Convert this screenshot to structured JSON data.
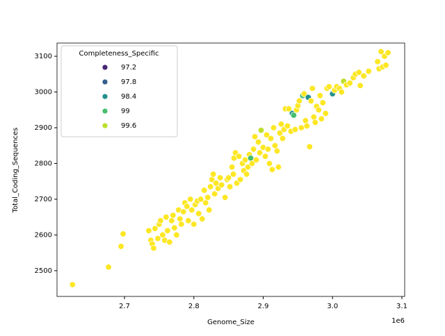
{
  "chart_data": {
    "type": "scatter",
    "xlabel": "Genome_Size",
    "ylabel": "Total_Coding_Sequences",
    "x_offset_label": "1e6",
    "legend_title": "Completeness_Specific",
    "legend_values": [
      97.2,
      97.8,
      98.4,
      99.0,
      99.6
    ],
    "palette": "viridis",
    "hue_lim": [
      96.9,
      99.9
    ],
    "legend_corner": "upper left",
    "xlim": [
      2602700,
      3104000
    ],
    "xticks": [
      {
        "value": 2700000,
        "label": "2.7"
      },
      {
        "value": 2800000,
        "label": "2.8"
      },
      {
        "value": 2900000,
        "label": "2.9"
      },
      {
        "value": 3000000,
        "label": "3.0"
      },
      {
        "value": 3100000,
        "label": "3.1"
      }
    ],
    "ylim": [
      2428,
      3137
    ],
    "yticks": [
      2500,
      2600,
      2700,
      2800,
      2900,
      3000,
      3100
    ],
    "x": [
      2625000,
      2677000,
      2695000,
      2698000,
      2735000,
      2738000,
      2740000,
      2742000,
      2744000,
      2748000,
      2750000,
      2752000,
      2755000,
      2758000,
      2760000,
      2762000,
      2765000,
      2768000,
      2770000,
      2772000,
      2775000,
      2778000,
      2780000,
      2782000,
      2785000,
      2787000,
      2790000,
      2792000,
      2795000,
      2797000,
      2800000,
      2802000,
      2805000,
      2807000,
      2810000,
      2812000,
      2815000,
      2817000,
      2820000,
      2822000,
      2824000,
      2826000,
      2828000,
      2830000,
      2832000,
      2835000,
      2838000,
      2840000,
      2845000,
      2848000,
      2850000,
      2852000,
      2855000,
      2857000,
      2858000,
      2860000,
      2862000,
      2865000,
      2867000,
      2870000,
      2872000,
      2874000,
      2876000,
      2878000,
      2880000,
      2882000,
      2884000,
      2886000,
      2888000,
      2890000,
      2893000,
      2895000,
      2897000,
      2900000,
      2903000,
      2905000,
      2907000,
      2909000,
      2911000,
      2913000,
      2915000,
      2917000,
      2920000,
      2922000,
      2924000,
      2926000,
      2928000,
      2930000,
      2932000,
      2935000,
      2937000,
      2940000,
      2942000,
      2944000,
      2946000,
      2948000,
      2950000,
      2952000,
      2955000,
      2957000,
      2959000,
      2961000,
      2963000,
      2965000,
      2967000,
      2969000,
      2971000,
      2973000,
      2975000,
      2977000,
      2980000,
      2982000,
      2984000,
      2986000,
      2990000,
      2992000,
      2995000,
      3000000,
      3003000,
      3006000,
      3010000,
      3013000,
      3016000,
      3020000,
      3025000,
      3030000,
      3033000,
      3038000,
      3040000,
      3045000,
      3052000,
      3065000,
      3067000,
      3070000,
      3072000,
      3075000,
      3077000,
      3080000
    ],
    "y": [
      2461,
      2510,
      2568,
      2603,
      2612,
      2585,
      2575,
      2563,
      2618,
      2590,
      2630,
      2640,
      2600,
      2585,
      2650,
      2612,
      2580,
      2640,
      2655,
      2620,
      2600,
      2670,
      2645,
      2630,
      2665,
      2690,
      2680,
      2640,
      2700,
      2670,
      2630,
      2685,
      2695,
      2660,
      2700,
      2645,
      2725,
      2690,
      2705,
      2670,
      2735,
      2755,
      2770,
      2715,
      2745,
      2730,
      2760,
      2740,
      2705,
      2755,
      2760,
      2735,
      2790,
      2770,
      2815,
      2830,
      2745,
      2820,
      2755,
      2800,
      2780,
      2810,
      2770,
      2790,
      2825,
      2815,
      2800,
      2840,
      2875,
      2810,
      2860,
      2830,
      2893,
      2845,
      2820,
      2880,
      2840,
      2800,
      2870,
      2783,
      2900,
      2850,
      2835,
      2790,
      2885,
      2910,
      2870,
      2895,
      2953,
      2905,
      2953,
      2890,
      2940,
      2935,
      2895,
      2950,
      2962,
      2975,
      2900,
      2990,
      2995,
      2920,
      2905,
      2985,
      2847,
      2975,
      3010,
      2930,
      2915,
      2960,
      2950,
      2990,
      2925,
      2970,
      2940,
      3010,
      3015,
      2995,
      3005,
      3015,
      3010,
      3000,
      3030,
      3020,
      3025,
      3040,
      3050,
      3055,
      3018,
      3045,
      3058,
      3085,
      3065,
      3113,
      3070,
      3100,
      3075,
      3110
    ],
    "hue": [
      100,
      100,
      100,
      100,
      100,
      100,
      100,
      100,
      100,
      100,
      100,
      100,
      100,
      100,
      100,
      100,
      100,
      100,
      100,
      100,
      100,
      100,
      100,
      100,
      100,
      100,
      100,
      100,
      100,
      100,
      100,
      100,
      100,
      100,
      100,
      100,
      100,
      100,
      100,
      100,
      100,
      100,
      100,
      100,
      100,
      100,
      100,
      100,
      100,
      100,
      100,
      100,
      100,
      100,
      100,
      100,
      100,
      100,
      100,
      100,
      100,
      100,
      100,
      100,
      100,
      99.0,
      100,
      100,
      100,
      100,
      100,
      100,
      99.6,
      100,
      100,
      100,
      100,
      100,
      100,
      100,
      100,
      100,
      100,
      100,
      100,
      100,
      100,
      100,
      100,
      100,
      100,
      100,
      98.4,
      99.0,
      100,
      100,
      100,
      100,
      100,
      99.0,
      100,
      100,
      100,
      98.4,
      100,
      100,
      100,
      100,
      100,
      100,
      100,
      100,
      100,
      100,
      100,
      100,
      100,
      98.4,
      100,
      100,
      100,
      100,
      99.6,
      100,
      100,
      100,
      100,
      100,
      100,
      100,
      100,
      100,
      100,
      100,
      100,
      100,
      100,
      100
    ]
  }
}
